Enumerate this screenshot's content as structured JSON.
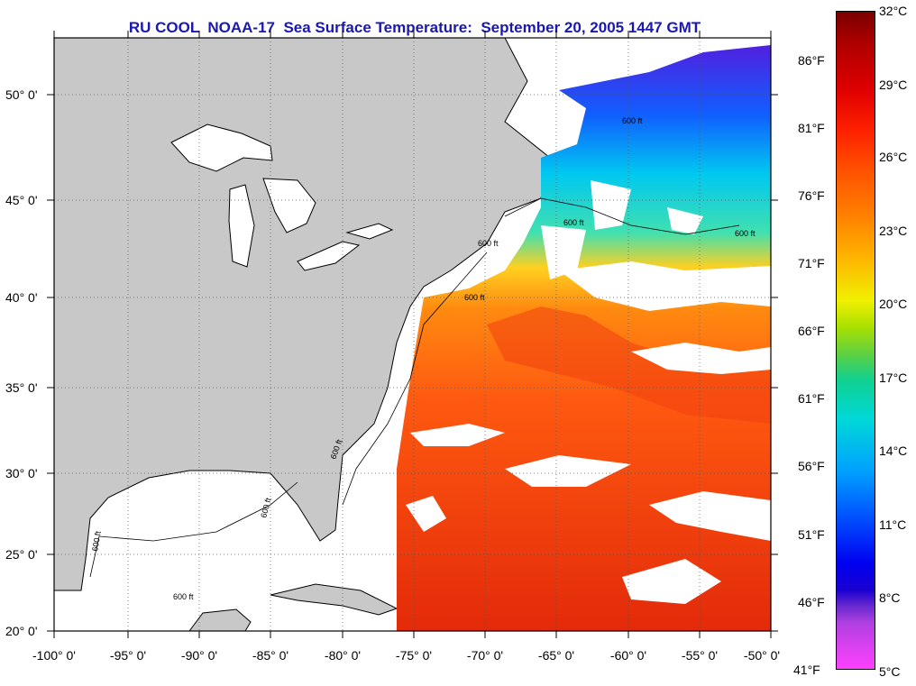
{
  "title": "RU COOL  NOAA-17  Sea Surface Temperature:  September 20, 2005 1447 GMT",
  "colors": {
    "title": "#1a18b0",
    "land": "#c8c8c8",
    "no_data": "#ffffff",
    "sst_warm": "#e8380a",
    "sst_mid": "#ff8c00",
    "sst_cool": "#00c8e8",
    "sst_cold": "#3050ff"
  },
  "lat_labels": [
    "50° 0'",
    "45° 0'",
    "40° 0'",
    "35° 0'",
    "30° 0'",
    "25° 0'",
    "20° 0'"
  ],
  "lon_labels": [
    "-100° 0'",
    "-95° 0'",
    "-90° 0'",
    "-85° 0'",
    "-80° 0'",
    "-75° 0'",
    "-70° 0'",
    "-65° 0'",
    "-60° 0'",
    "-55° 0'",
    "-50° 0'"
  ],
  "colorbar": {
    "fahrenheit": [
      "86°F",
      "81°F",
      "76°F",
      "71°F",
      "66°F",
      "61°F",
      "56°F",
      "51°F",
      "46°F",
      "41°F"
    ],
    "celsius": [
      "32°C",
      "29°C",
      "26°C",
      "23°C",
      "20°C",
      "17°C",
      "14°C",
      "11°C",
      "8°C",
      "5°C"
    ]
  },
  "contour_labels": [
    "600 ft",
    "600 ft",
    "600 ft",
    "600 ft",
    "600 ft",
    "600 ft",
    "600 ft",
    "600 ft",
    "600 ft"
  ]
}
